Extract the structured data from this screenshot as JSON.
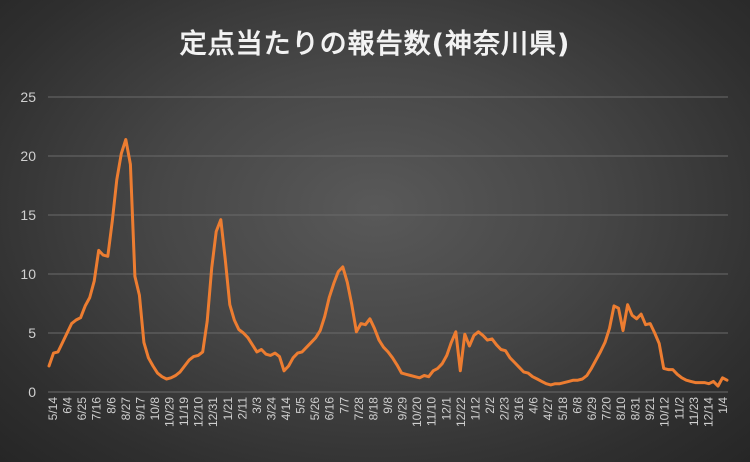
{
  "chart_data": {
    "type": "line",
    "title": "定点当たりの報告数(神奈川県)",
    "xlabel": "",
    "ylabel": "",
    "ylim": [
      0,
      25
    ],
    "yticks": [
      0,
      5,
      10,
      15,
      20,
      25
    ],
    "grid": true,
    "legend": "none",
    "line_color": "#ed7d31",
    "x_tick_labels": [
      "5/14",
      "6/4",
      "6/25",
      "7/16",
      "8/6",
      "8/27",
      "9/17",
      "10/8",
      "10/29",
      "11/19",
      "12/10",
      "12/31",
      "1/21",
      "2/11",
      "3/3",
      "3/24",
      "4/14",
      "5/5",
      "5/26",
      "6/16",
      "7/7",
      "7/28",
      "8/18",
      "9/8",
      "9/29",
      "10/20",
      "11/10",
      "12/1",
      "12/22",
      "1/12",
      "2/2",
      "2/23",
      "3/16",
      "4/6",
      "4/27",
      "5/18",
      "6/8",
      "6/29",
      "7/20",
      "8/10",
      "8/31",
      "9/21",
      "10/12",
      "11/2",
      "11/23",
      "12/14",
      "1/4"
    ],
    "series": [
      {
        "values": [
          2.2,
          3.3,
          3.4,
          4.2,
          5.0,
          5.8,
          6.1,
          6.3,
          7.3,
          8.0,
          9.4,
          12.0,
          11.6,
          11.5,
          14.5,
          18.0,
          20.2,
          21.4,
          19.3,
          9.8,
          8.2,
          4.2,
          2.9,
          2.2,
          1.6,
          1.3,
          1.1,
          1.2,
          1.4,
          1.7,
          2.2,
          2.7,
          3.0,
          3.1,
          3.4,
          6.0,
          10.5,
          13.6,
          14.6,
          11.2,
          7.4,
          6.1,
          5.3,
          5.0,
          4.6,
          4.0,
          3.4,
          3.6,
          3.2,
          3.1,
          3.3,
          3.0,
          1.8,
          2.2,
          2.9,
          3.3,
          3.4,
          3.8,
          4.2,
          4.6,
          5.2,
          6.4,
          8.0,
          9.2,
          10.2,
          10.6,
          9.3,
          7.4,
          5.1,
          5.8,
          5.7,
          6.2,
          5.4,
          4.4,
          3.8,
          3.4,
          2.9,
          2.3,
          1.6,
          1.5,
          1.4,
          1.3,
          1.2,
          1.4,
          1.3,
          1.8,
          2.0,
          2.4,
          3.1,
          4.2,
          5.1,
          1.8,
          4.9,
          3.9,
          4.8,
          5.1,
          4.8,
          4.4,
          4.5,
          4.0,
          3.6,
          3.5,
          2.9,
          2.5,
          2.1,
          1.7,
          1.6,
          1.3,
          1.1,
          0.9,
          0.7,
          0.6,
          0.7,
          0.7,
          0.8,
          0.9,
          1.0,
          1.0,
          1.1,
          1.4,
          2.0,
          2.7,
          3.4,
          4.2,
          5.4,
          7.3,
          7.1,
          5.2,
          7.4,
          6.5,
          6.2,
          6.6,
          5.7,
          5.8,
          5.0,
          4.1,
          2.0,
          1.9,
          1.9,
          1.5,
          1.2,
          1.0,
          0.9,
          0.8,
          0.8,
          0.8,
          0.7,
          0.9,
          0.5,
          1.2,
          1.0
        ]
      }
    ]
  }
}
